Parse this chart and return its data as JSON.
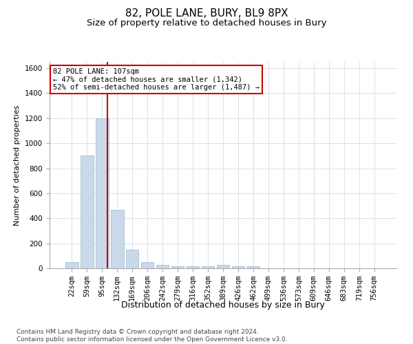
{
  "title": "82, POLE LANE, BURY, BL9 8PX",
  "subtitle": "Size of property relative to detached houses in Bury",
  "xlabel": "Distribution of detached houses by size in Bury",
  "ylabel": "Number of detached properties",
  "bin_labels": [
    "22sqm",
    "59sqm",
    "95sqm",
    "132sqm",
    "169sqm",
    "206sqm",
    "242sqm",
    "279sqm",
    "316sqm",
    "352sqm",
    "389sqm",
    "426sqm",
    "462sqm",
    "499sqm",
    "536sqm",
    "573sqm",
    "609sqm",
    "646sqm",
    "683sqm",
    "719sqm",
    "756sqm"
  ],
  "bar_values": [
    50,
    900,
    1200,
    470,
    150,
    50,
    30,
    15,
    15,
    15,
    30,
    15,
    15,
    0,
    0,
    0,
    0,
    0,
    0,
    0,
    0
  ],
  "bar_color": "#c9d9ea",
  "bar_edge_color": "#9ab4cc",
  "grid_color": "#d4dce8",
  "vline_x_idx": 2.35,
  "vline_color": "#cc0000",
  "annotation_line1": "82 POLE LANE: 107sqm",
  "annotation_line2": "← 47% of detached houses are smaller (1,342)",
  "annotation_line3": "52% of semi-detached houses are larger (1,487) →",
  "annotation_box_color": "#ffffff",
  "annotation_box_edge": "#cc0000",
  "ylim": [
    0,
    1650
  ],
  "yticks": [
    0,
    200,
    400,
    600,
    800,
    1000,
    1200,
    1400,
    1600
  ],
  "footer": "Contains HM Land Registry data © Crown copyright and database right 2024.\nContains public sector information licensed under the Open Government Licence v3.0.",
  "title_fontsize": 11,
  "subtitle_fontsize": 9.5,
  "xlabel_fontsize": 9,
  "ylabel_fontsize": 8,
  "tick_fontsize": 7.5,
  "annotation_fontsize": 7.5,
  "footer_fontsize": 6.5
}
